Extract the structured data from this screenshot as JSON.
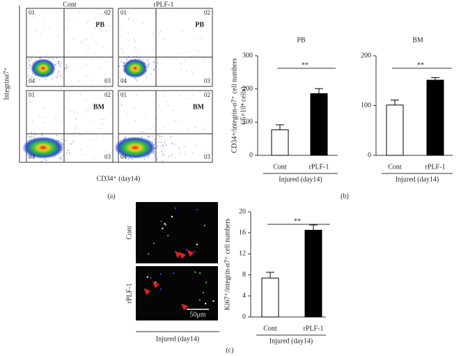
{
  "flow": {
    "columns": [
      "Cont",
      "rPLF-1"
    ],
    "rows": [
      "PB",
      "BM"
    ],
    "quadrants": [
      "01",
      "02",
      "03",
      "04"
    ],
    "x_label": "CD34⁺ (day14)",
    "y_label": "Integrinα7⁺",
    "panel": "(a)"
  },
  "micro": {
    "rows": [
      "Cont",
      "rPLF-1"
    ],
    "scale": "50μm",
    "group_label": "Injured (day14)",
    "panel": "(c)"
  },
  "panel_b": "(b)",
  "chart_data": [
    {
      "type": "bar",
      "title": "PB",
      "categories": [
        "Cont",
        "rPLF-1"
      ],
      "values": [
        77,
        186
      ],
      "errors": [
        15,
        15
      ],
      "colors": [
        "#ffffff",
        "#000000"
      ],
      "ylim": [
        0,
        300
      ],
      "yticks": [
        0,
        100,
        200,
        300
      ],
      "y_label": "CD34+/integrin-α7⁺ cell numbers",
      "y_label_unit": "(/5×10⁴ cells)",
      "group_label": "Injured (day14)",
      "significance": "**"
    },
    {
      "type": "bar",
      "title": "BM",
      "categories": [
        "Cont",
        "rPLF-1"
      ],
      "values": [
        101,
        151
      ],
      "errors": [
        10,
        5
      ],
      "colors": [
        "#ffffff",
        "#000000"
      ],
      "ylim": [
        0,
        200
      ],
      "yticks": [
        0,
        100,
        200
      ],
      "group_label": "Injured (day14)",
      "significance": "**"
    },
    {
      "type": "bar",
      "categories": [
        "Cont",
        "rPLF-1"
      ],
      "values": [
        7.4,
        16.5
      ],
      "errors": [
        1.1,
        1.0
      ],
      "colors": [
        "#ffffff",
        "#000000"
      ],
      "ylim": [
        0,
        20
      ],
      "yticks": [
        0,
        4,
        8,
        12,
        16,
        20
      ],
      "y_label": "Ki67⁺/integrin-α7⁺ cell numbers",
      "group_label": "Injured (day14)",
      "significance": "**"
    }
  ]
}
